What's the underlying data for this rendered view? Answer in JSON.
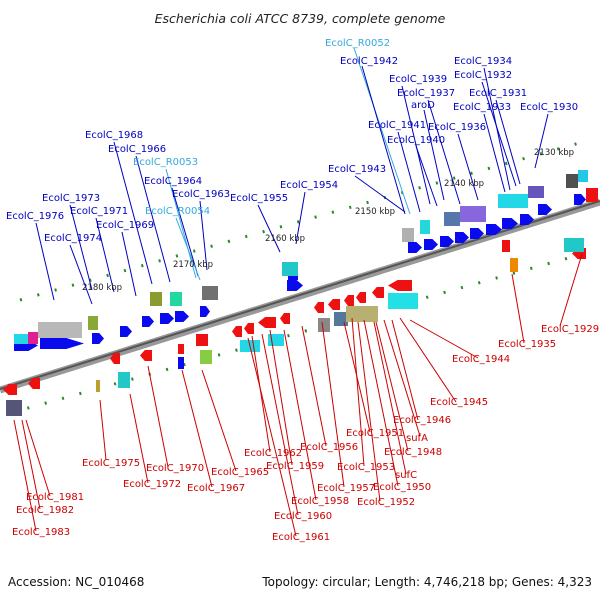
{
  "title": "Escherichia coli ATCC 8739, complete genome",
  "footer": {
    "accession": "Accession: NC_010468",
    "summary": "Topology: circular; Length: 4,746,218 bp; Genes: 4,323"
  },
  "colors": {
    "forward_label": "#0000c0",
    "reverse_label": "#cc0000",
    "rna_label": "#33aadd",
    "forward_feature": "#0a0aee",
    "reverse_feature": "#ee1111",
    "backbone": "#777777"
  },
  "coordinates": [
    "2130 kbp",
    "2140 kbp",
    "2150 kbp",
    "2160 kbp",
    "2170 kbp",
    "2180 kbp"
  ],
  "top_labels": [
    "EcolC_R0052",
    "EcolC_1942",
    "EcolC_1939",
    "EcolC_1934",
    "EcolC_1932",
    "EcolC_1937",
    "EcolC_1931",
    "aroD",
    "EcolC_1933",
    "EcolC_1930",
    "EcolC_1941",
    "EcolC_1936",
    "EcolC_1940",
    "EcolC_1943",
    "EcolC_1954",
    "EcolC_1955",
    "EcolC_1968",
    "EcolC_1966",
    "EcolC_R0053",
    "EcolC_1964",
    "EcolC_1963",
    "EcolC_R0054",
    "EcolC_1973",
    "EcolC_1971",
    "EcolC_1976",
    "EcolC_1969",
    "EcolC_1974"
  ],
  "bottom_labels": [
    "EcolC_1929",
    "EcolC_1935",
    "EcolC_1944",
    "EcolC_1945",
    "EcolC_1946",
    "EcolC_1951",
    "sufA",
    "EcolC_1948",
    "EcolC_1956",
    "EcolC_1953",
    "sufC",
    "EcolC_1962",
    "EcolC_1959",
    "EcolC_1957",
    "EcolC_1950",
    "EcolC_1952",
    "EcolC_1958",
    "EcolC_1960",
    "EcolC_1961",
    "EcolC_1975",
    "EcolC_1970",
    "EcolC_1965",
    "EcolC_1972",
    "EcolC_1967",
    "EcolC_1981",
    "EcolC_1982",
    "EcolC_1983"
  ]
}
